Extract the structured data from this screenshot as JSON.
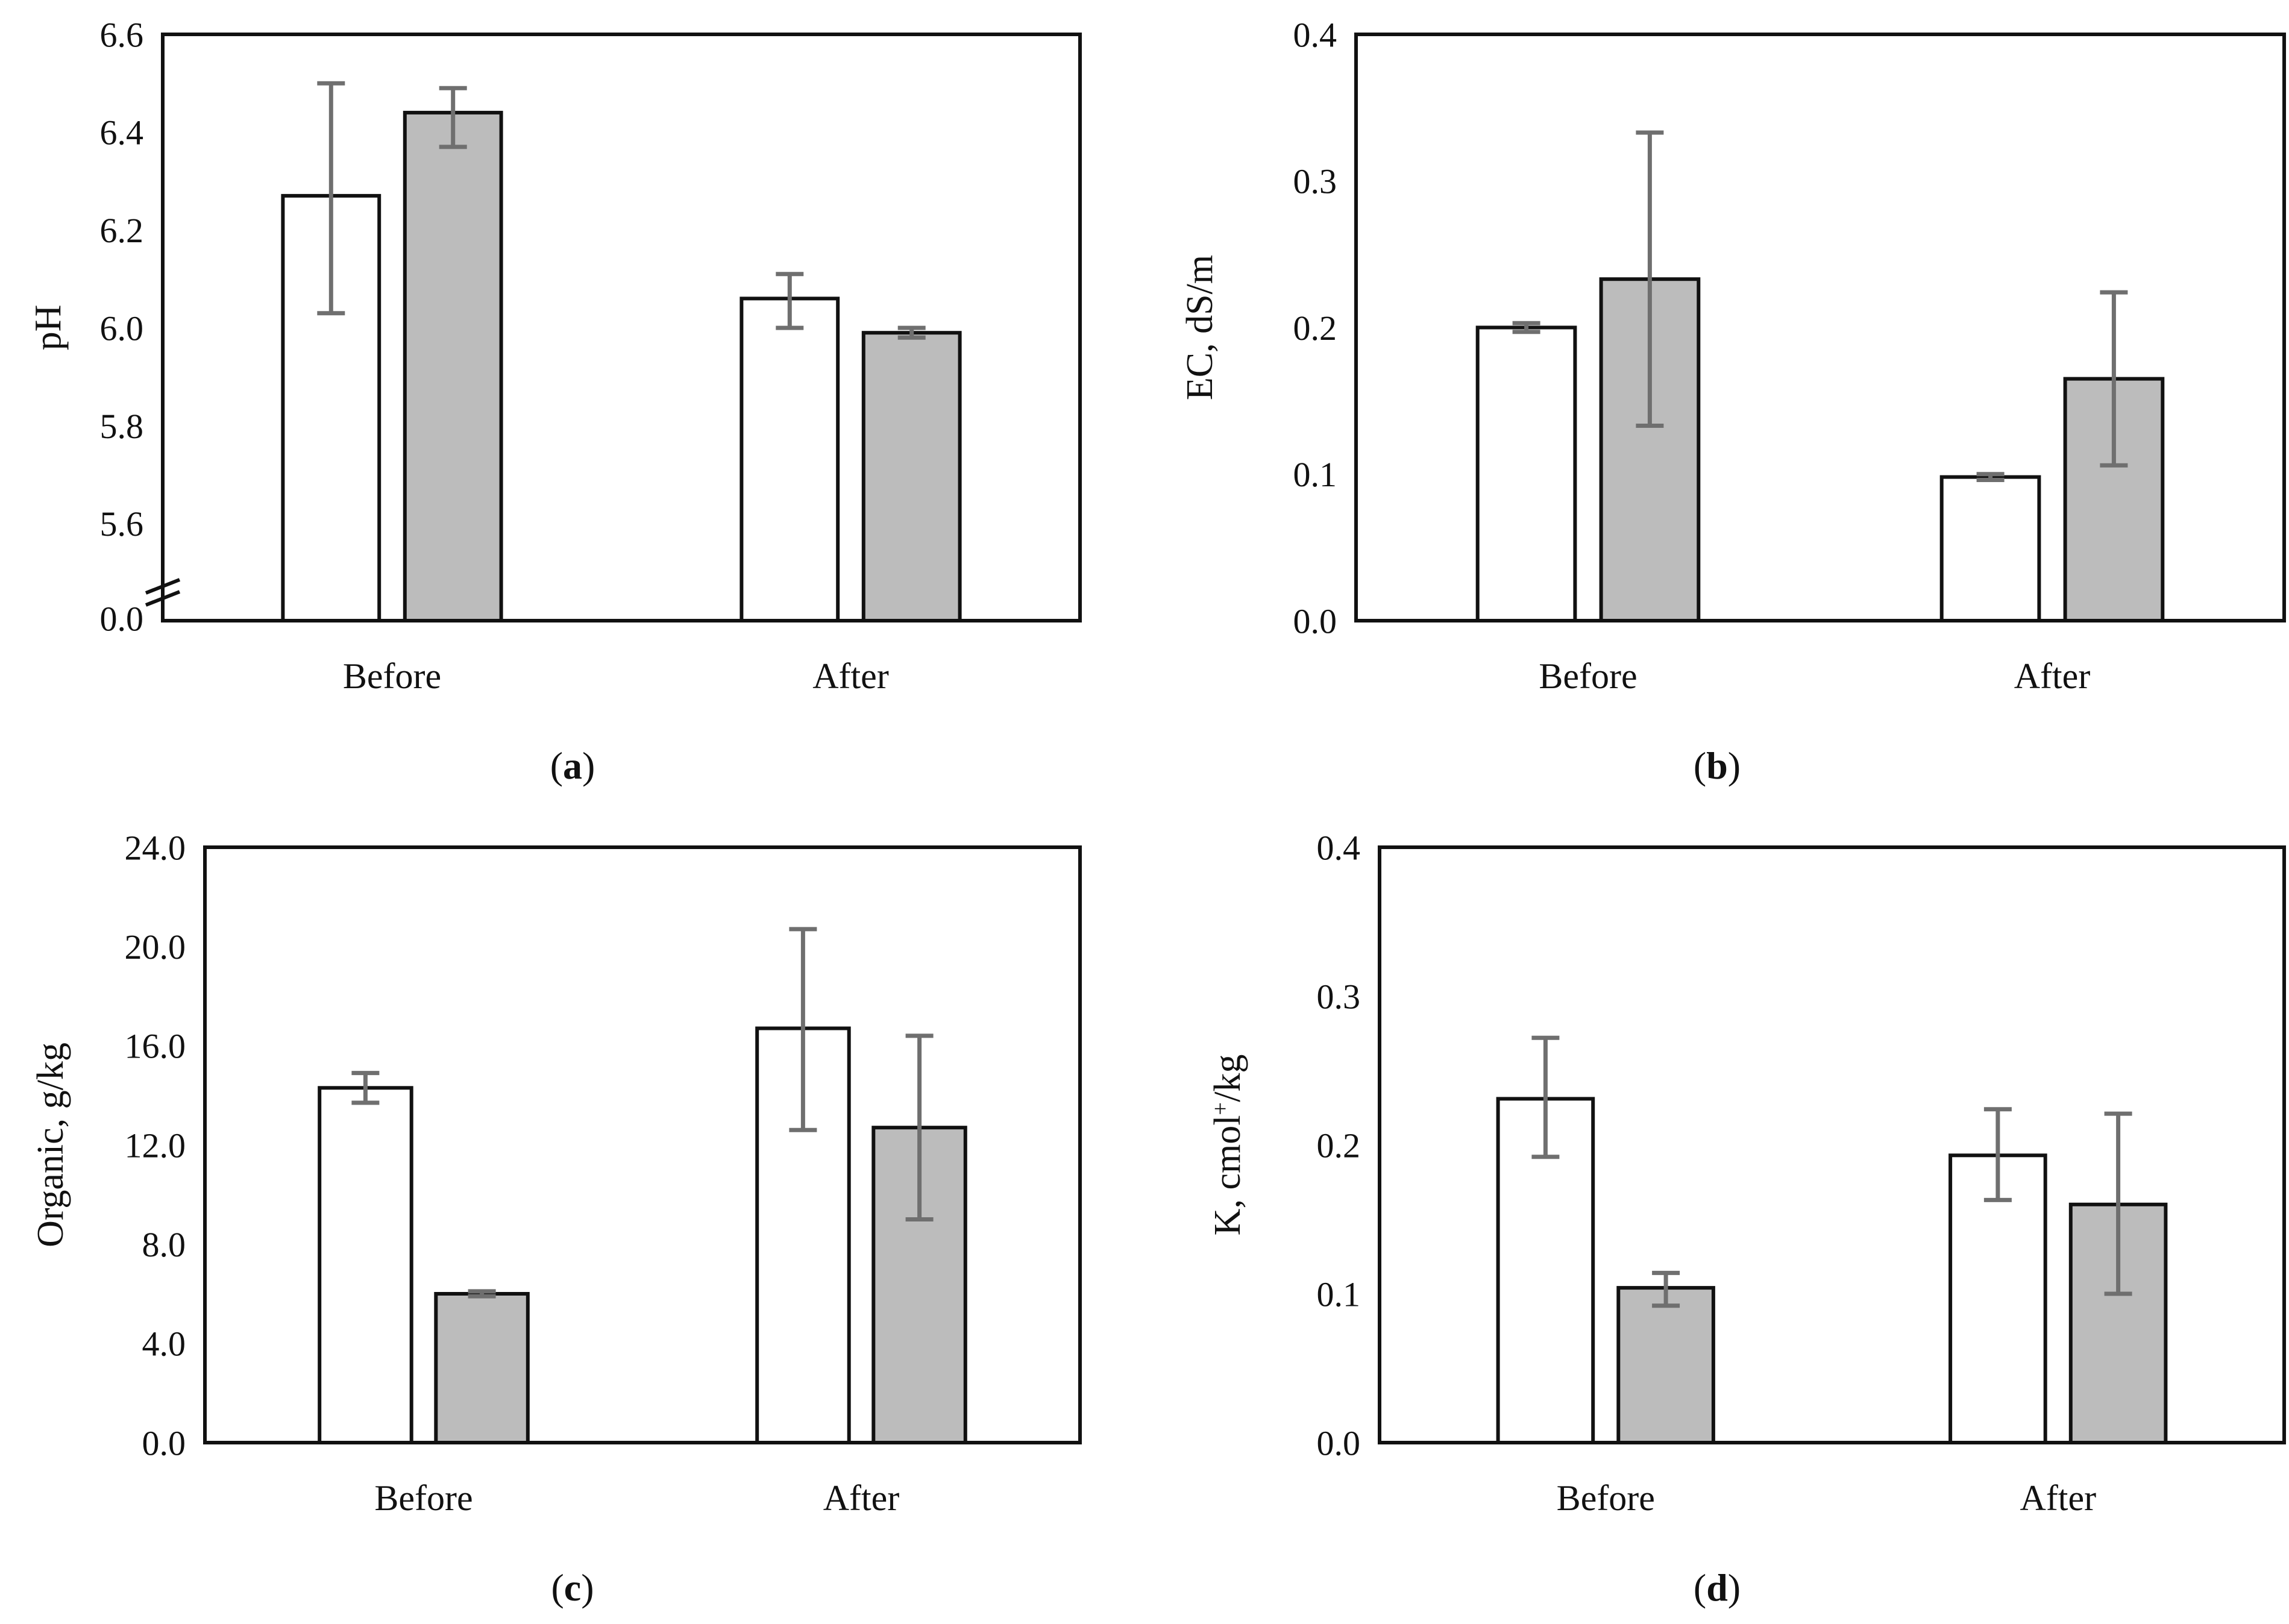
{
  "figure": {
    "background": "#ffffff",
    "colors": {
      "bar_white_fill": "#ffffff",
      "bar_gray_fill": "#bcbcbc",
      "bar_outline": "#111111",
      "error_bar": "#6f6f6f",
      "axis": "#111111",
      "text": "#111111"
    },
    "panel_letters": [
      "a",
      "b",
      "c",
      "d"
    ]
  },
  "chart_data": [
    {
      "panel": "a",
      "panel_label_letter": "a",
      "type": "bar",
      "ylabel_parts": [
        {
          "t": "pH"
        }
      ],
      "categories": [
        "Before",
        "After"
      ],
      "y_axis": {
        "max": 6.6,
        "axis_break": true,
        "break_upper_min": 5.5,
        "ticks": [
          {
            "label": "6.6",
            "value": 6.6
          },
          {
            "label": "6.4",
            "value": 6.4
          },
          {
            "label": "6.2",
            "value": 6.2
          },
          {
            "label": "6.0",
            "value": 6.0
          },
          {
            "label": "5.8",
            "value": 5.8
          },
          {
            "label": "5.6",
            "value": 5.6
          },
          {
            "label": "0.0",
            "value": 0.0,
            "bottom": true
          }
        ]
      },
      "series": [
        {
          "key": "white",
          "fill": "#ffffff",
          "points": [
            {
              "category": "Before",
              "value": 6.27,
              "err_lo": 6.03,
              "err_hi": 6.5
            },
            {
              "category": "After",
              "value": 6.06,
              "err_lo": 6.0,
              "err_hi": 6.11
            }
          ]
        },
        {
          "key": "gray",
          "fill": "#bcbcbc",
          "points": [
            {
              "category": "Before",
              "value": 6.44,
              "err_lo": 6.37,
              "err_hi": 6.49
            },
            {
              "category": "After",
              "value": 5.99,
              "err_lo": 5.98,
              "err_hi": 6.0
            }
          ]
        }
      ]
    },
    {
      "panel": "b",
      "panel_label_letter": "b",
      "type": "bar",
      "ylabel_parts": [
        {
          "t": "EC, dS/m"
        }
      ],
      "categories": [
        "Before",
        "After"
      ],
      "y_axis": {
        "max": 0.4,
        "axis_break": false,
        "ticks": [
          {
            "label": "0.4",
            "value": 0.4
          },
          {
            "label": "0.3",
            "value": 0.3
          },
          {
            "label": "0.2",
            "value": 0.2
          },
          {
            "label": "0.1",
            "value": 0.1
          },
          {
            "label": "0.0",
            "value": 0.0
          }
        ]
      },
      "series": [
        {
          "key": "white",
          "fill": "#ffffff",
          "points": [
            {
              "category": "Before",
              "value": 0.2,
              "err_lo": 0.197,
              "err_hi": 0.203
            },
            {
              "category": "After",
              "value": 0.098,
              "err_lo": 0.096,
              "err_hi": 0.1
            }
          ]
        },
        {
          "key": "gray",
          "fill": "#bcbcbc",
          "points": [
            {
              "category": "Before",
              "value": 0.233,
              "err_lo": 0.133,
              "err_hi": 0.333
            },
            {
              "category": "After",
              "value": 0.165,
              "err_lo": 0.106,
              "err_hi": 0.224
            }
          ]
        }
      ]
    },
    {
      "panel": "c",
      "panel_label_letter": "c",
      "type": "bar",
      "ylabel_parts": [
        {
          "t": "Organic, g/kg"
        }
      ],
      "categories": [
        "Before",
        "After"
      ],
      "y_axis": {
        "max": 24.0,
        "axis_break": false,
        "ticks": [
          {
            "label": "24.0",
            "value": 24.0
          },
          {
            "label": "20.0",
            "value": 20.0
          },
          {
            "label": "16.0",
            "value": 16.0
          },
          {
            "label": "12.0",
            "value": 12.0
          },
          {
            "label": "8.0",
            "value": 8.0
          },
          {
            "label": "4.0",
            "value": 4.0
          },
          {
            "label": "0.0",
            "value": 0.0
          }
        ]
      },
      "series": [
        {
          "key": "white",
          "fill": "#ffffff",
          "points": [
            {
              "category": "Before",
              "value": 14.3,
              "err_lo": 13.7,
              "err_hi": 14.9
            },
            {
              "category": "After",
              "value": 16.7,
              "err_lo": 12.6,
              "err_hi": 20.7
            }
          ]
        },
        {
          "key": "gray",
          "fill": "#bcbcbc",
          "points": [
            {
              "category": "Before",
              "value": 6.0,
              "err_lo": 5.9,
              "err_hi": 6.1
            },
            {
              "category": "After",
              "value": 12.7,
              "err_lo": 9.0,
              "err_hi": 16.4
            }
          ]
        }
      ]
    },
    {
      "panel": "d",
      "panel_label_letter": "d",
      "type": "bar",
      "ylabel_parts": [
        {
          "t": "K, cmol"
        },
        {
          "t": "+",
          "sup": true
        },
        {
          "t": "/kg"
        }
      ],
      "categories": [
        "Before",
        "After"
      ],
      "y_axis": {
        "max": 0.4,
        "axis_break": false,
        "ticks": [
          {
            "label": "0.4",
            "value": 0.4
          },
          {
            "label": "0.3",
            "value": 0.3
          },
          {
            "label": "0.2",
            "value": 0.2
          },
          {
            "label": "0.1",
            "value": 0.1
          },
          {
            "label": "0.0",
            "value": 0.0
          }
        ]
      },
      "series": [
        {
          "key": "white",
          "fill": "#ffffff",
          "points": [
            {
              "category": "Before",
              "value": 0.231,
              "err_lo": 0.192,
              "err_hi": 0.272
            },
            {
              "category": "After",
              "value": 0.193,
              "err_lo": 0.163,
              "err_hi": 0.224
            }
          ]
        },
        {
          "key": "gray",
          "fill": "#bcbcbc",
          "points": [
            {
              "category": "Before",
              "value": 0.104,
              "err_lo": 0.092,
              "err_hi": 0.114
            },
            {
              "category": "After",
              "value": 0.16,
              "err_lo": 0.1,
              "err_hi": 0.221
            }
          ]
        }
      ]
    }
  ]
}
